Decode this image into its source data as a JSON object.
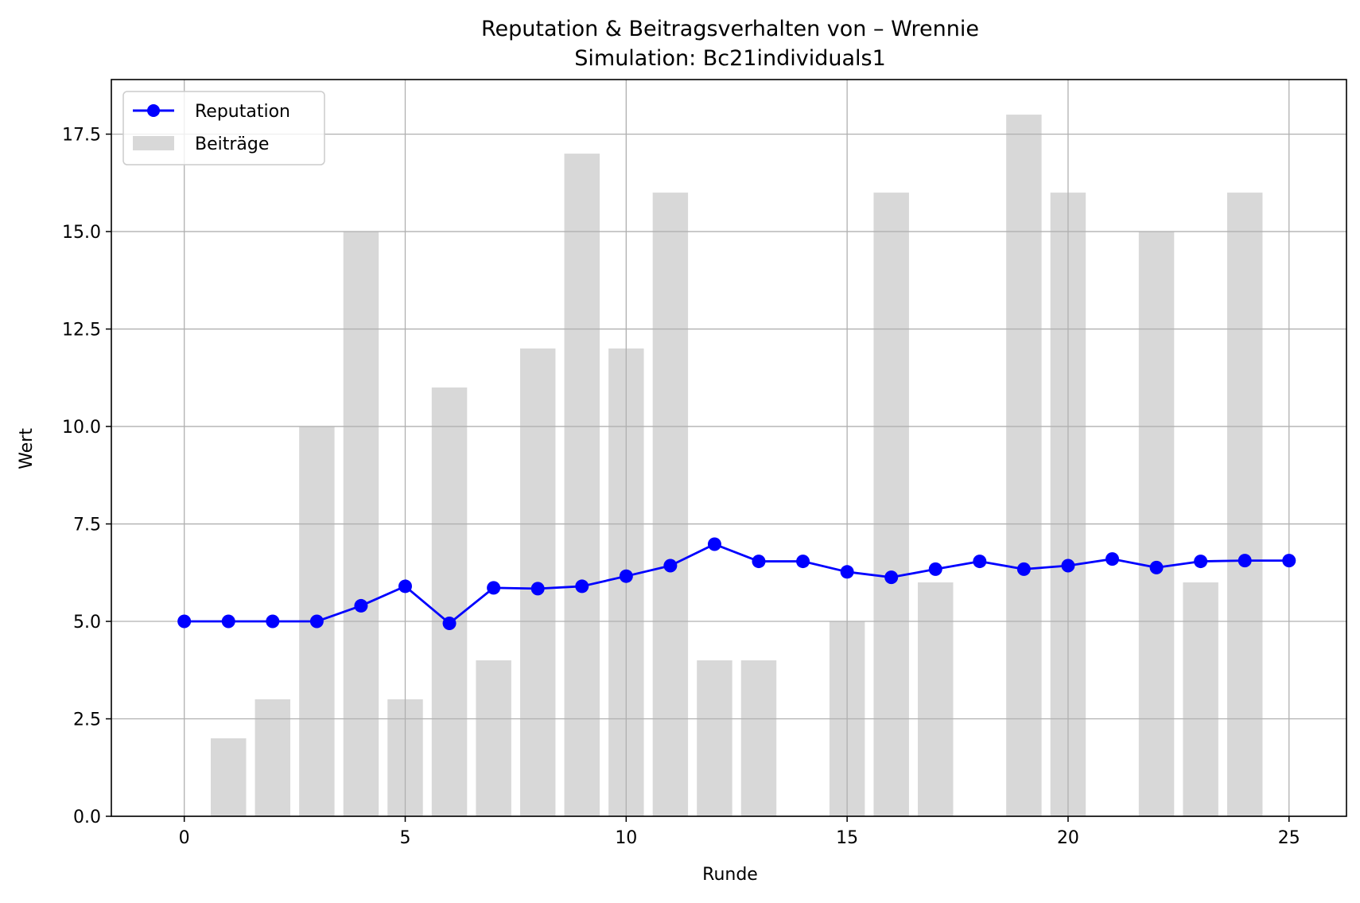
{
  "chart_data": {
    "type": "bar+line",
    "title": "Reputation & Beitragsverhalten von – Wrennie",
    "subtitle": "Simulation: Bc21individuals1",
    "xlabel": "Runde",
    "ylabel": "Wert",
    "xlim": [
      -1.65,
      26.3
    ],
    "ylim": [
      0,
      18.9
    ],
    "x_ticks": [
      0,
      5,
      10,
      15,
      20,
      25
    ],
    "x_tick_labels": [
      "0",
      "5",
      "10",
      "15",
      "20",
      "25"
    ],
    "y_ticks": [
      0,
      2.5,
      5,
      7.5,
      10,
      12.5,
      15,
      17.5
    ],
    "y_tick_labels": [
      "0.0",
      "2.5",
      "5.0",
      "7.5",
      "10.0",
      "12.5",
      "15.0",
      "17.5"
    ],
    "grid": true,
    "legend_position": "top-left",
    "rounds": [
      0,
      1,
      2,
      3,
      4,
      5,
      6,
      7,
      8,
      9,
      10,
      11,
      12,
      13,
      14,
      15,
      16,
      17,
      18,
      19,
      20,
      21,
      22,
      23,
      24,
      25
    ],
    "series": [
      {
        "name": "Reputation",
        "kind": "line",
        "color": "#0000ff",
        "values": [
          5.0,
          5.0,
          5.0,
          5.0,
          5.4,
          5.9,
          4.95,
          5.86,
          5.84,
          5.9,
          6.16,
          6.43,
          6.98,
          6.54,
          6.54,
          6.27,
          6.13,
          6.34,
          6.54,
          6.34,
          6.43,
          6.6,
          6.38,
          6.54,
          6.56,
          6.56
        ]
      },
      {
        "name": "Beiträge",
        "kind": "bar",
        "color": "#d8d8d8",
        "values": [
          0,
          2,
          3,
          10,
          15,
          3,
          11,
          4,
          12,
          17,
          12,
          16,
          4,
          4,
          0,
          5,
          16,
          6,
          0,
          18,
          16,
          0,
          15,
          6,
          16,
          0
        ]
      }
    ],
    "colors": {
      "grid": "#b0b0b0",
      "axes": "#000000",
      "legend_border": "#cccccc"
    }
  }
}
